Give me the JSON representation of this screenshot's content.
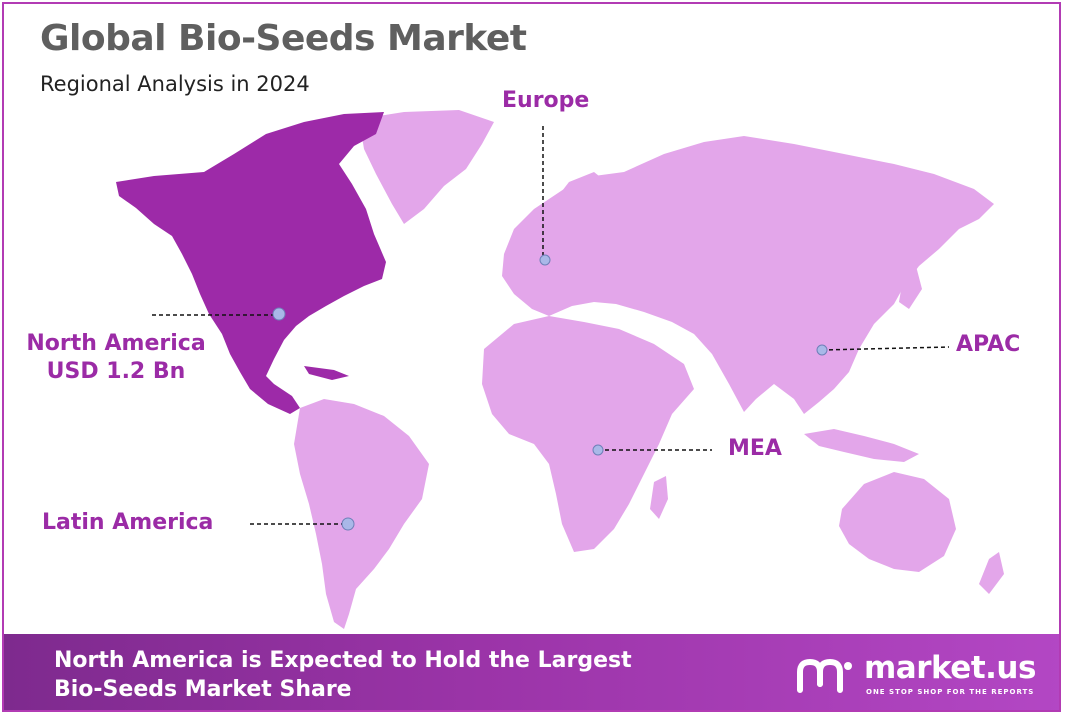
{
  "header": {
    "title": "Global Bio-Seeds Market",
    "subtitle": "Regional Analysis in 2024"
  },
  "regions": {
    "europe": "Europe",
    "apac": "APAC",
    "mea": "MEA",
    "latin_america": "Latin America",
    "north_america": "North America",
    "north_america_value": "USD 1.2 Bn"
  },
  "footer": {
    "line1": "North America is Expected to Hold the Largest",
    "line2": "Bio-Seeds Market Share"
  },
  "brand": {
    "name": "market.us",
    "tagline": "ONE STOP SHOP FOR THE REPORTS"
  },
  "colors": {
    "highlight_region": "#9d2aa8",
    "other_regions": "#e3a6ea",
    "label": "#9b2ba6",
    "marker": "#a9b8e8",
    "footer": "#9b34a8"
  }
}
